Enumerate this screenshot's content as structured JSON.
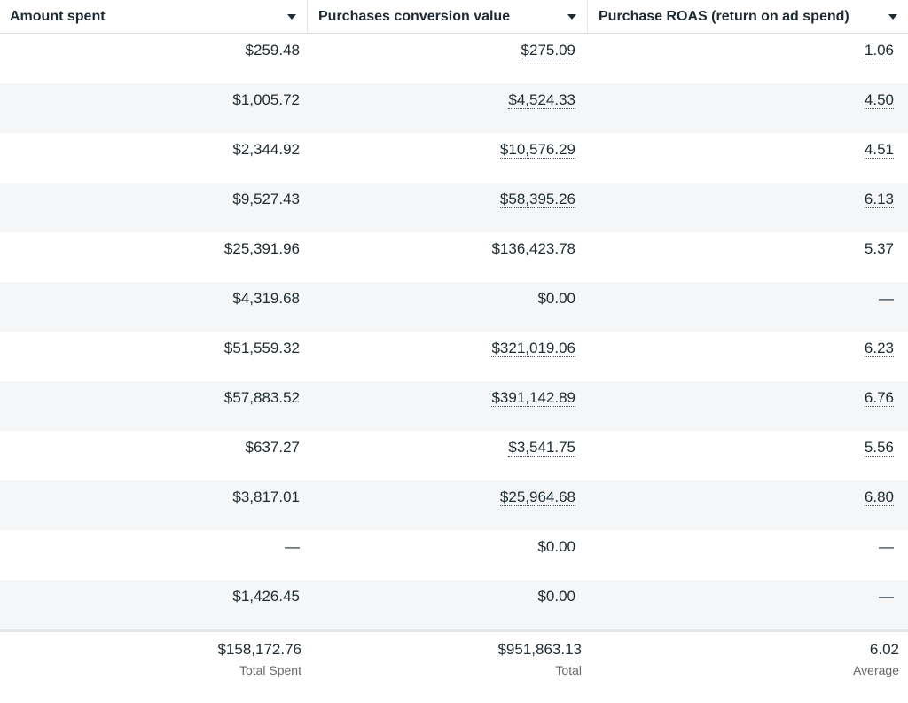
{
  "header": {
    "col1": "Amount spent",
    "col2": "Purchases conversion value",
    "col3": "Purchase ROAS (return on ad spend)"
  },
  "rows": [
    {
      "spent": "$259.48",
      "value": "$275.09",
      "roas": "1.06",
      "value_link": true,
      "roas_link": true
    },
    {
      "spent": "$1,005.72",
      "value": "$4,524.33",
      "roas": "4.50",
      "value_link": true,
      "roas_link": true
    },
    {
      "spent": "$2,344.92",
      "value": "$10,576.29",
      "roas": "4.51",
      "value_link": true,
      "roas_link": true
    },
    {
      "spent": "$9,527.43",
      "value": "$58,395.26",
      "roas": "6.13",
      "value_link": true,
      "roas_link": true
    },
    {
      "spent": "$25,391.96",
      "value": "$136,423.78",
      "roas": "5.37",
      "value_link": false,
      "roas_link": false
    },
    {
      "spent": "$4,319.68",
      "value": "$0.00",
      "roas": "—",
      "value_link": false,
      "roas_link": false
    },
    {
      "spent": "$51,559.32",
      "value": "$321,019.06",
      "roas": "6.23",
      "value_link": true,
      "roas_link": true
    },
    {
      "spent": "$57,883.52",
      "value": "$391,142.89",
      "roas": "6.76",
      "value_link": true,
      "roas_link": true
    },
    {
      "spent": "$637.27",
      "value": "$3,541.75",
      "roas": "5.56",
      "value_link": true,
      "roas_link": true
    },
    {
      "spent": "$3,817.01",
      "value": "$25,964.68",
      "roas": "6.80",
      "value_link": true,
      "roas_link": true
    },
    {
      "spent": "—",
      "value": "$0.00",
      "roas": "—",
      "value_link": false,
      "roas_link": false
    },
    {
      "spent": "$1,426.45",
      "value": "$0.00",
      "roas": "—",
      "value_link": false,
      "roas_link": false
    }
  ],
  "footer": {
    "spent_total": "$158,172.76",
    "spent_label": "Total Spent",
    "value_total": "$951,863.13",
    "value_label": "Total",
    "roas_avg": "6.02",
    "roas_label": "Average"
  },
  "colors": {
    "text": "#1c2b33",
    "muted": "#65676b",
    "row_alt": "#f5f6f7",
    "border": "#dadde1"
  },
  "icons": {
    "sort": "caret-down-icon"
  }
}
